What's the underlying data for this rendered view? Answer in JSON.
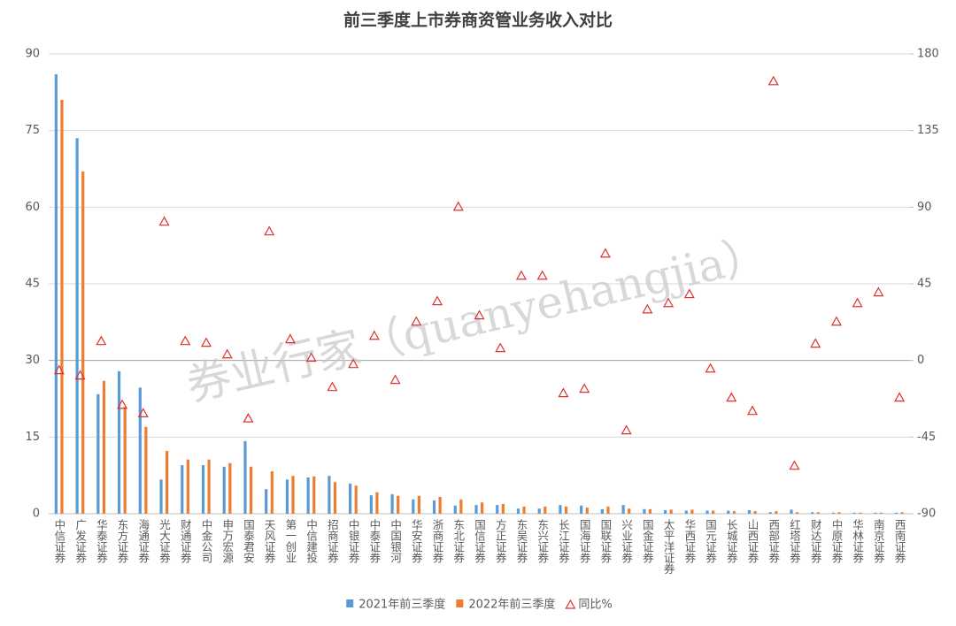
{
  "chart_data": {
    "type": "bar",
    "title": "前三季度上市券商资管业务收入对比",
    "watermark": "券业行家（quanyehangjia）",
    "categories": [
      "中信证券",
      "广发证券",
      "华泰证券",
      "东方证券",
      "海通证券",
      "光大证券",
      "财通证券",
      "中金公司",
      "申万宏源",
      "国泰君安",
      "天风证券",
      "第一创业",
      "中信建投",
      "招商证券",
      "中银证券",
      "中泰证券",
      "中国银河",
      "华安证券",
      "浙商证券",
      "东北证券",
      "国信证券",
      "方正证券",
      "东吴证券",
      "东兴证券",
      "长江证券",
      "国海证券",
      "国联证券",
      "兴业证券",
      "国金证券",
      "太平洋证券",
      "华西证券",
      "国元证券",
      "长城证券",
      "山西证券",
      "西部证券",
      "红塔证券",
      "财达证券",
      "中原证券",
      "华林证券",
      "南京证券",
      "西南证券"
    ],
    "series": [
      {
        "name": "2021年前三季度",
        "color": "#5b9bd5",
        "values": [
          86.0,
          73.5,
          23.4,
          27.9,
          24.7,
          6.7,
          9.5,
          9.5,
          9.2,
          14.2,
          4.8,
          6.7,
          7.1,
          7.4,
          5.9,
          3.6,
          3.8,
          2.8,
          2.6,
          1.6,
          1.7,
          1.7,
          1.0,
          1.0,
          1.7,
          1.6,
          0.9,
          1.7,
          0.9,
          0.7,
          0.6,
          0.6,
          0.6,
          0.7,
          0.3,
          0.8,
          0.3,
          0.2,
          0.2,
          0.2,
          0.2
        ]
      },
      {
        "name": "2022年前三季度",
        "color": "#ed7d31",
        "values": [
          81.0,
          67.0,
          26.0,
          20.9,
          17.0,
          12.3,
          10.6,
          10.6,
          9.9,
          9.2,
          8.3,
          7.4,
          7.3,
          6.2,
          5.5,
          4.2,
          3.5,
          3.5,
          3.3,
          2.8,
          2.2,
          1.9,
          1.4,
          1.4,
          1.4,
          1.2,
          1.4,
          1.0,
          0.9,
          0.8,
          0.8,
          0.6,
          0.5,
          0.5,
          0.5,
          0.3,
          0.3,
          0.3,
          0.2,
          0.2,
          0.3
        ]
      },
      {
        "name": "同比%",
        "color": "#e03030",
        "type": "scatter",
        "marker": "triangle",
        "axis": "y2",
        "values": [
          -5.7,
          -8.8,
          11.4,
          -26,
          -31,
          81.5,
          11.4,
          10.4,
          3.6,
          -34,
          75.8,
          12.5,
          1.6,
          -15.6,
          -2.1,
          14.5,
          -11.4,
          22.8,
          34.8,
          90.3,
          26.5,
          7.3,
          49.8,
          49.8,
          -19.2,
          -16.6,
          62.8,
          -41,
          30,
          33.7,
          39,
          -4.7,
          -21.8,
          -29.6,
          164,
          -61.8,
          9.9,
          22.8,
          33.7,
          40,
          -21.8
        ]
      }
    ],
    "ylim": [
      0,
      90
    ],
    "yticks": [
      0,
      15,
      30,
      45,
      60,
      75,
      90
    ],
    "y2lim": [
      -90,
      180
    ],
    "y2ticks": [
      -90,
      -45,
      0,
      45,
      90,
      135,
      180
    ],
    "grid": true,
    "legend": "bottom"
  }
}
